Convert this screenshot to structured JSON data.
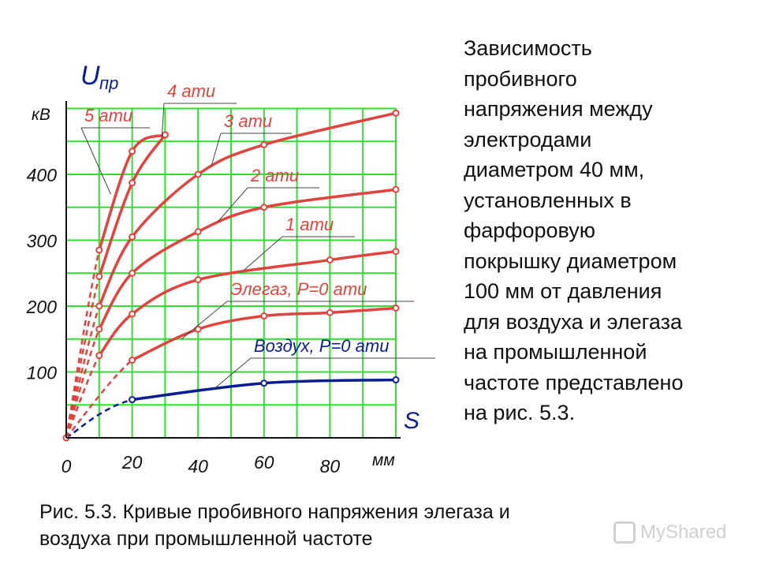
{
  "text_block": "Зависимость\nпробивного\nнапряжения между\nэлектродами\nдиаметром 40 мм,\nустановленных в\nфарфоровую\nпокрышку диаметром\n100 мм от давления\nдля воздуха и элегаза\nна промышленной\nчастоте представлено\nна рис. 5.3.",
  "caption": "Рис. 5.3. Кривые пробивного напряжения элегаза и\nвоздуха при промышленной частоте",
  "watermark": "MyShared",
  "colors": {
    "grid": "#33dd33",
    "sf6": "#e0443e",
    "air": "#0a1f8f",
    "axis": "#111111",
    "leader": "#444444"
  },
  "chart_data": {
    "type": "line",
    "y_axis_symbol": "U",
    "y_axis_subscript": "пр",
    "y_unit": "кВ",
    "x_axis_symbol": "S",
    "x_unit": "мм",
    "x_ticks": [
      0,
      20,
      40,
      60,
      80
    ],
    "y_ticks": [
      100,
      200,
      300,
      400
    ],
    "xlim": [
      0,
      100
    ],
    "ylim": [
      0,
      500
    ],
    "grid": true,
    "series": [
      {
        "name": "5 ати",
        "color_key": "sf6",
        "x": [
          0,
          10,
          20,
          30
        ],
        "y": [
          0,
          285,
          435,
          460
        ]
      },
      {
        "name": "4 ати",
        "color_key": "sf6",
        "x": [
          0,
          10,
          20,
          30
        ],
        "y": [
          0,
          245,
          387,
          460
        ]
      },
      {
        "name": "3 ати",
        "color_key": "sf6",
        "x": [
          0,
          10,
          20,
          40,
          60,
          100
        ],
        "y": [
          0,
          200,
          305,
          400,
          445,
          493
        ]
      },
      {
        "name": "2 ати",
        "color_key": "sf6",
        "x": [
          0,
          10,
          20,
          40,
          60,
          100
        ],
        "y": [
          0,
          165,
          250,
          313,
          350,
          377
        ]
      },
      {
        "name": "1 ати",
        "color_key": "sf6",
        "x": [
          0,
          10,
          20,
          40,
          80,
          100
        ],
        "y": [
          0,
          125,
          188,
          240,
          270,
          283
        ]
      },
      {
        "name": "Элегаз, P=0 ати",
        "color_key": "sf6",
        "x": [
          0,
          20,
          40,
          60,
          80,
          100
        ],
        "y": [
          0,
          118,
          165,
          185,
          190,
          197
        ]
      },
      {
        "name": "Воздух, P=0 ати",
        "color_key": "air",
        "x": [
          0,
          20,
          60,
          100
        ],
        "y": [
          0,
          58,
          83,
          88
        ]
      }
    ]
  }
}
